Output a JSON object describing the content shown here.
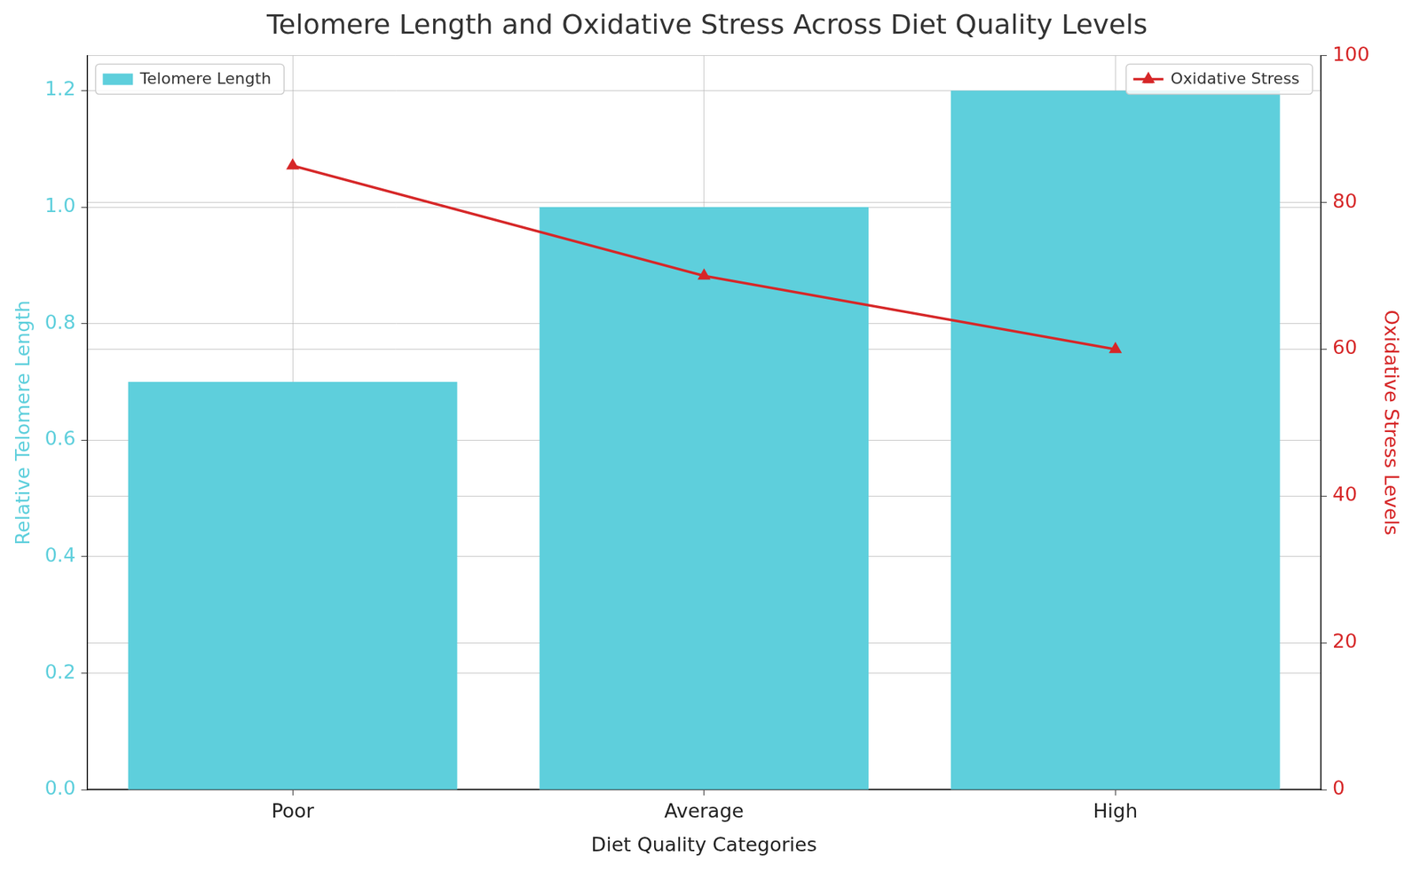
{
  "chart_data": {
    "type": "bar",
    "title": "Telomere Length and Oxidative Stress Across Diet Quality Levels",
    "categories": [
      "Poor",
      "Average",
      "High"
    ],
    "xlabel": "Diet Quality Categories",
    "ylabel": "Relative Telomere Length",
    "y2label": "Oxidative Stress Levels",
    "series": [
      {
        "name": "Telomere Length",
        "type": "bar",
        "color": "#5ecfdc",
        "values": [
          0.7,
          1.0,
          1.2
        ],
        "legend": "upper left"
      },
      {
        "name": "Oxidative Stress",
        "type": "line",
        "color": "#d62728",
        "marker": "triangle",
        "values": [
          85,
          70,
          60
        ],
        "axis": "y2",
        "legend": "upper right"
      }
    ],
    "ylim": [
      0,
      1.26
    ],
    "yticks": [
      {
        "value": 0,
        "label": "0.0"
      },
      0.2,
      0.4,
      0.6,
      0.8,
      {
        "value": 1,
        "label": "1.0"
      },
      1.2
    ],
    "y2lim": [
      0,
      100
    ],
    "y2ticks": [
      0,
      20,
      40,
      60,
      80,
      100
    ],
    "grid": true
  }
}
